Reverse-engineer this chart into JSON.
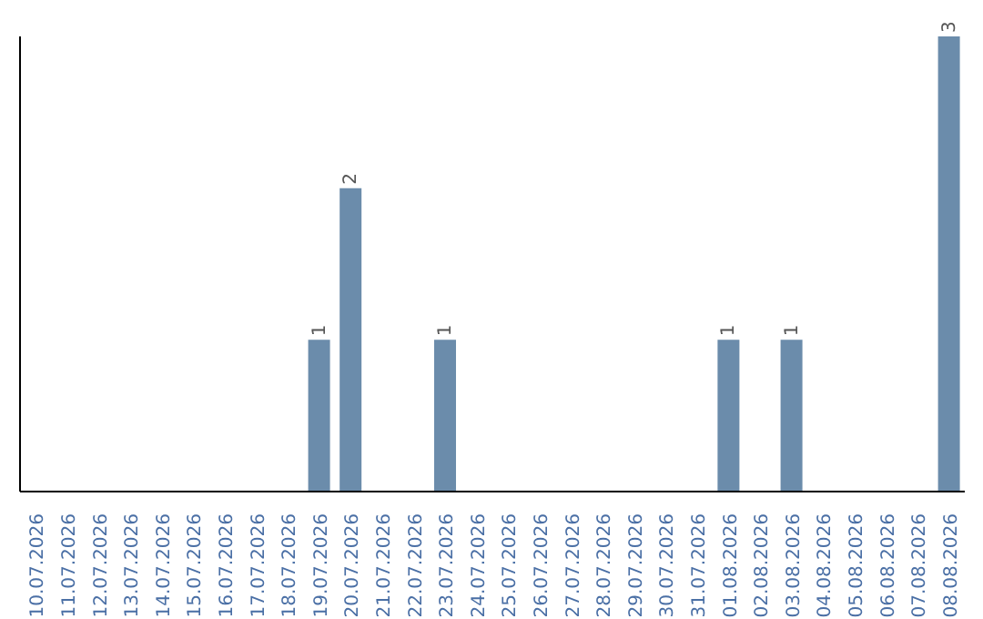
{
  "chart_data": {
    "type": "bar",
    "categories": [
      "10.07.2026",
      "11.07.2026",
      "12.07.2026",
      "13.07.2026",
      "14.07.2026",
      "15.07.2026",
      "16.07.2026",
      "17.07.2026",
      "18.07.2026",
      "19.07.2026",
      "20.07.2026",
      "21.07.2026",
      "22.07.2026",
      "23.07.2026",
      "24.07.2026",
      "25.07.2026",
      "26.07.2026",
      "27.07.2026",
      "28.07.2026",
      "29.07.2026",
      "30.07.2026",
      "31.07.2026",
      "01.08.2026",
      "02.08.2026",
      "03.08.2026",
      "04.08.2026",
      "05.08.2026",
      "06.08.2026",
      "07.08.2026",
      "08.08.2026"
    ],
    "values": [
      null,
      null,
      null,
      null,
      null,
      null,
      null,
      null,
      null,
      1,
      2,
      null,
      null,
      1,
      null,
      null,
      null,
      null,
      null,
      null,
      null,
      null,
      1,
      null,
      1,
      null,
      null,
      null,
      null,
      3
    ],
    "data_labels": true,
    "color": "#6b8cab"
  }
}
